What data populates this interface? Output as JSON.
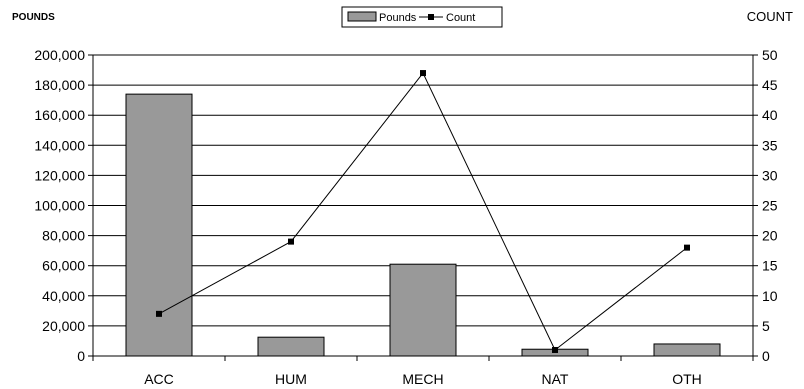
{
  "chart_data": {
    "type": "bar",
    "categories": [
      "ACC",
      "HUM",
      "MECH",
      "NAT",
      "OTH"
    ],
    "series": [
      {
        "name": "Pounds",
        "type": "bar",
        "axis": "left",
        "values": [
          174000,
          12500,
          61000,
          4500,
          8000
        ],
        "color": "#999999"
      },
      {
        "name": "Count",
        "type": "line",
        "axis": "right",
        "values": [
          7,
          19,
          47,
          1,
          18
        ],
        "color": "#000000",
        "marker": "square"
      }
    ],
    "ylabel_left": "POUNDS",
    "ylabel_right": "COUNT",
    "ylim_left": [
      0,
      200000
    ],
    "ylim_right": [
      0,
      50
    ],
    "yticks_left": [
      "0",
      "20,000",
      "40,000",
      "60,000",
      "80,000",
      "100,000",
      "120,000",
      "140,000",
      "160,000",
      "180,000",
      "200,000"
    ],
    "yticks_right": [
      "0",
      "5",
      "10",
      "15",
      "20",
      "25",
      "30",
      "35",
      "40",
      "45",
      "50"
    ],
    "grid": true,
    "legend": {
      "position": "top-center",
      "entries": [
        "Pounds",
        "Count"
      ]
    }
  }
}
